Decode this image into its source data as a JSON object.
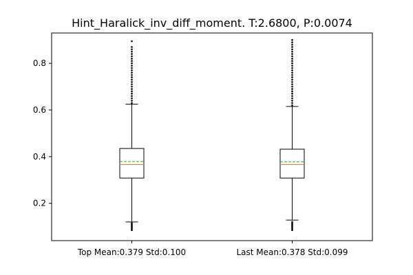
{
  "chart_data": {
    "type": "box",
    "title": "Hint_Haralick_inv_diff_moment. T:2.6800, P:0.0074",
    "xlabel": "",
    "ylabel": "",
    "ylim": [
      0.04,
      0.93
    ],
    "yticks": [
      0.2,
      0.4,
      0.6,
      0.8
    ],
    "ytick_labels": [
      "0.2",
      "0.4",
      "0.6",
      "0.8"
    ],
    "grid": false,
    "categories": [
      "Top Mean:0.379 Std:0.100",
      "Last Mean:0.378 Std:0.099"
    ],
    "boxes": [
      {
        "label": "Top Mean:0.379 Std:0.100",
        "whisker_low": 0.12,
        "q1": 0.308,
        "median": 0.366,
        "mean": 0.379,
        "q3": 0.435,
        "whisker_high": 0.625,
        "outliers_low": [
          0.115,
          0.11,
          0.105,
          0.1,
          0.095,
          0.09,
          0.085
        ],
        "outliers_high": [
          0.63,
          0.64,
          0.65,
          0.66,
          0.67,
          0.68,
          0.69,
          0.7,
          0.71,
          0.72,
          0.73,
          0.74,
          0.75,
          0.76,
          0.77,
          0.78,
          0.79,
          0.8,
          0.81,
          0.82,
          0.83,
          0.84,
          0.85,
          0.86,
          0.87,
          0.895
        ]
      },
      {
        "label": "Last Mean:0.378 Std:0.099",
        "whisker_low": 0.128,
        "q1": 0.308,
        "median": 0.366,
        "mean": 0.378,
        "q3": 0.432,
        "whisker_high": 0.615,
        "outliers_low": [
          0.12,
          0.115,
          0.11,
          0.105,
          0.1,
          0.095,
          0.09,
          0.085
        ],
        "outliers_high": [
          0.62,
          0.63,
          0.64,
          0.65,
          0.66,
          0.67,
          0.68,
          0.69,
          0.7,
          0.71,
          0.72,
          0.73,
          0.74,
          0.75,
          0.76,
          0.77,
          0.78,
          0.79,
          0.8,
          0.81,
          0.82,
          0.83,
          0.84,
          0.85,
          0.86,
          0.87,
          0.88,
          0.89,
          0.9
        ]
      }
    ],
    "colors": {
      "median": "#ff7f0e",
      "mean": "#2ca02c",
      "box": "#000000"
    }
  }
}
